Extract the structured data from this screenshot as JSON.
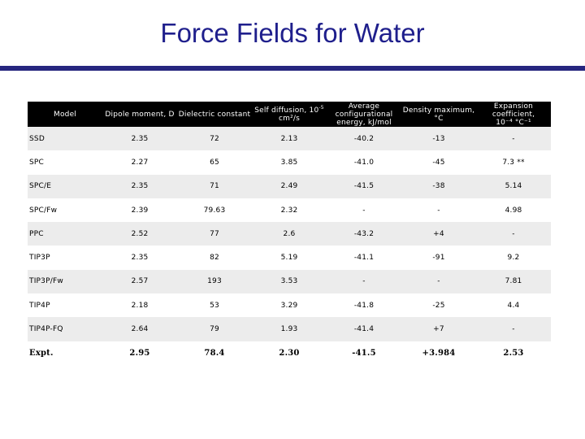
{
  "title": "Force Fields for Water",
  "table": {
    "headers": {
      "model": "Model",
      "dipole": "Dipole moment, D",
      "dielectric": "Dielectric constant",
      "diffusion_main": "Self diffusion, 10",
      "diffusion_exp": "-5",
      "diffusion_unit": "cm²/s",
      "energy": "Average configurational energy, kJ/mol",
      "density": "Density maximum, °C",
      "expansion_main": "Expansion coefficient,",
      "expansion_unit": "10⁻⁴ °C⁻¹"
    },
    "rows": [
      {
        "model": "SSD",
        "dipole": "2.35",
        "dielectric": "72",
        "diffusion": "2.13",
        "energy": "-40.2",
        "density": "-13",
        "expansion": "-"
      },
      {
        "model": "SPC",
        "dipole": "2.27",
        "dielectric": "65",
        "diffusion": "3.85",
        "energy": "-41.0",
        "density": "-45",
        "expansion": "7.3 **"
      },
      {
        "model": "SPC/E",
        "dipole": "2.35",
        "dielectric": "71",
        "diffusion": "2.49",
        "energy": "-41.5",
        "density": "-38",
        "expansion": "5.14"
      },
      {
        "model": "SPC/Fw",
        "dipole": "2.39",
        "dielectric": "79.63",
        "diffusion": "2.32",
        "energy": "-",
        "density": "-",
        "expansion": "4.98"
      },
      {
        "model": "PPC",
        "dipole": "2.52",
        "dielectric": "77",
        "diffusion": "2.6",
        "energy": "-43.2",
        "density": "+4",
        "expansion": "-"
      },
      {
        "model": "TIP3P",
        "dipole": "2.35",
        "dielectric": "82",
        "diffusion": "5.19",
        "energy": "-41.1",
        "density": "-91",
        "expansion": "9.2"
      },
      {
        "model": "TIP3P/Fw",
        "dipole": "2.57",
        "dielectric": "193",
        "diffusion": "3.53",
        "energy": "-",
        "density": "-",
        "expansion": "7.81"
      },
      {
        "model": "TIP4P",
        "dipole": "2.18",
        "dielectric": "53",
        "diffusion": "3.29",
        "energy": "-41.8",
        "density": "-25",
        "expansion": "4.4"
      },
      {
        "model": "TIP4P-FQ",
        "dipole": "2.64",
        "dielectric": "79",
        "diffusion": "1.93",
        "energy": "-41.4",
        "density": "+7",
        "expansion": "-"
      },
      {
        "model": "Expt.",
        "dipole": "2.95",
        "dielectric": "78.4",
        "diffusion": "2.30",
        "energy": "-41.5",
        "density": "+3.984",
        "expansion": "2.53"
      }
    ]
  }
}
